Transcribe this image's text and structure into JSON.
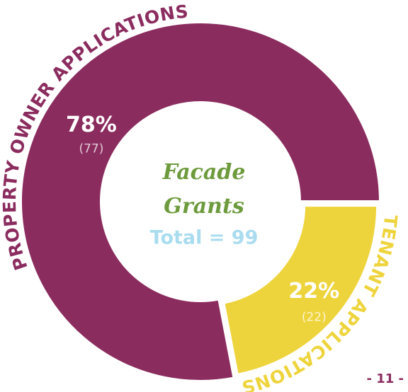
{
  "chart_data": {
    "type": "pie",
    "donut": true,
    "categories": [
      "PROPERTY OWNER APPLICATIONS",
      "TENANT APPLICATIONS"
    ],
    "values": [
      78,
      22
    ],
    "value_labels": [
      "78%",
      "22%"
    ],
    "counts": [
      77,
      22
    ],
    "count_labels": [
      "(77)",
      "(22)"
    ],
    "colors": [
      "#8b2c5f",
      "#eed43c"
    ],
    "center_text": [
      "Facade",
      "Grants",
      "Total = 99"
    ],
    "page_number": "- 11 -"
  }
}
